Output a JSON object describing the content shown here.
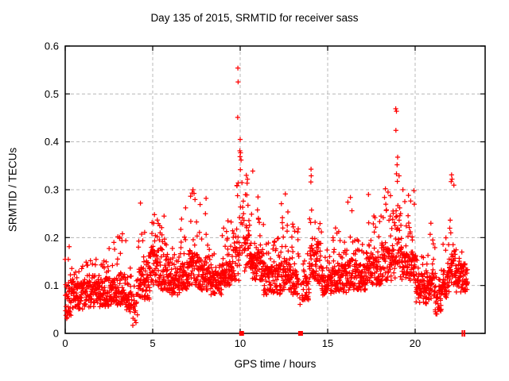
{
  "page": {
    "background": "#ffffff"
  },
  "chart_data": {
    "type": "scatter",
    "title": "Day 135 of 2015, SRMTID for receiver sass",
    "xlabel": "GPS time / hours",
    "ylabel": "SRMTID / TECUs",
    "xlim": [
      0,
      24
    ],
    "ylim": [
      0,
      0.6
    ],
    "xticks": [
      0,
      5,
      10,
      15,
      20
    ],
    "yticks": [
      0,
      0.1,
      0.2,
      0.3,
      0.4,
      0.5,
      0.6
    ],
    "grid": true,
    "grid_style": "dashed",
    "grid_color": "#b8b8b8",
    "border_color": "#000000",
    "text_color": "#000000",
    "marker": "plus",
    "marker_color": "#ff0000",
    "series": [
      {
        "name": "SRMTID",
        "x_extent_hours": [
          0.0,
          23.0
        ],
        "model": {
          "epoch_step_hours": 0.0095,
          "band_segments": [
            [
              0.0,
              0.35,
              0.03,
              0.12,
              0.19,
              1
            ],
            [
              0.35,
              1.05,
              0.05,
              0.105,
              0.145,
              1
            ],
            [
              1.05,
              2.3,
              0.055,
              0.105,
              0.155,
              1
            ],
            [
              2.3,
              3.0,
              0.055,
              0.115,
              0.185,
              1
            ],
            [
              3.0,
              3.5,
              0.06,
              0.125,
              0.205,
              1
            ],
            [
              3.5,
              3.8,
              0.045,
              0.095,
              0.14,
              0.9
            ],
            [
              3.8,
              4.15,
              0.015,
              0.07,
              0.12,
              0.55
            ],
            [
              4.15,
              4.55,
              0.07,
              0.15,
              0.26,
              0.95
            ],
            [
              4.55,
              4.85,
              0.07,
              0.125,
              0.18,
              1
            ],
            [
              4.85,
              5.45,
              0.1,
              0.175,
              0.245,
              1
            ],
            [
              5.45,
              5.95,
              0.09,
              0.155,
              0.24,
              1
            ],
            [
              5.95,
              6.55,
              0.08,
              0.13,
              0.19,
              1
            ],
            [
              6.55,
              7.05,
              0.09,
              0.15,
              0.26,
              1
            ],
            [
              7.05,
              7.6,
              0.1,
              0.165,
              0.295,
              1
            ],
            [
              7.6,
              8.3,
              0.09,
              0.15,
              0.27,
              1
            ],
            [
              8.3,
              8.95,
              0.08,
              0.125,
              0.17,
              1
            ],
            [
              8.95,
              9.55,
              0.1,
              0.155,
              0.235,
              1
            ],
            [
              9.55,
              9.95,
              0.11,
              0.2,
              0.315,
              0.95
            ],
            [
              9.95,
              10.25,
              0.15,
              0.26,
              0.42,
              0.5
            ],
            [
              10.25,
              10.65,
              0.13,
              0.22,
              0.33,
              1
            ],
            [
              10.65,
              11.35,
              0.11,
              0.175,
              0.275,
              1
            ],
            [
              11.35,
              12.3,
              0.08,
              0.14,
              0.205,
              1
            ],
            [
              12.3,
              12.75,
              0.09,
              0.15,
              0.28,
              1
            ],
            [
              12.75,
              13.35,
              0.08,
              0.135,
              0.225,
              1
            ],
            [
              13.35,
              13.6,
              0.06,
              0.1,
              0.14,
              0.2
            ],
            [
              13.6,
              13.95,
              0.07,
              0.115,
              0.19,
              0.85
            ],
            [
              13.95,
              14.35,
              0.1,
              0.175,
              0.33,
              1
            ],
            [
              14.35,
              14.65,
              0.1,
              0.185,
              0.265,
              1
            ],
            [
              14.65,
              15.25,
              0.08,
              0.13,
              0.18,
              1
            ],
            [
              15.25,
              16.1,
              0.085,
              0.14,
              0.215,
              1
            ],
            [
              16.1,
              16.45,
              0.09,
              0.155,
              0.28,
              1
            ],
            [
              16.45,
              17.25,
              0.09,
              0.14,
              0.2,
              1
            ],
            [
              17.25,
              18.05,
              0.1,
              0.16,
              0.25,
              1
            ],
            [
              18.05,
              18.85,
              0.11,
              0.18,
              0.31,
              1
            ],
            [
              18.85,
              19.15,
              0.13,
              0.24,
              0.365,
              1
            ],
            [
              19.15,
              19.6,
              0.11,
              0.175,
              0.295,
              1
            ],
            [
              19.6,
              20.05,
              0.1,
              0.17,
              0.295,
              1
            ],
            [
              20.05,
              20.65,
              0.06,
              0.11,
              0.17,
              1
            ],
            [
              20.65,
              21.15,
              0.07,
              0.125,
              0.225,
              1
            ],
            [
              21.15,
              21.5,
              0.04,
              0.09,
              0.135,
              0.95
            ],
            [
              21.5,
              21.95,
              0.075,
              0.13,
              0.205,
              1
            ],
            [
              21.95,
              22.35,
              0.1,
              0.165,
              0.31,
              1
            ],
            [
              22.35,
              23.0,
              0.085,
              0.135,
              0.175,
              1
            ]
          ],
          "peak_points": [
            [
              9.87,
              0.554
            ],
            [
              9.88,
              0.525
            ],
            [
              9.86,
              0.451
            ],
            [
              10.0,
              0.405
            ],
            [
              10.02,
              0.377
            ],
            [
              9.99,
              0.369
            ],
            [
              10.05,
              0.362
            ],
            [
              10.01,
              0.342
            ],
            [
              10.35,
              0.33
            ],
            [
              10.42,
              0.322
            ],
            [
              10.72,
              0.339
            ],
            [
              18.89,
              0.469
            ],
            [
              18.93,
              0.464
            ],
            [
              18.9,
              0.424
            ],
            [
              19.0,
              0.368
            ],
            [
              18.97,
              0.352
            ],
            [
              14.05,
              0.343
            ],
            [
              14.06,
              0.329
            ],
            [
              14.04,
              0.316
            ],
            [
              22.08,
              0.331
            ],
            [
              22.11,
              0.322
            ],
            [
              22.06,
              0.317
            ],
            [
              12.58,
              0.291
            ],
            [
              16.3,
              0.284
            ],
            [
              17.33,
              0.29
            ],
            [
              7.3,
              0.3
            ],
            [
              7.25,
              0.293
            ],
            [
              8.05,
              0.282
            ],
            [
              4.3,
              0.272
            ],
            [
              6.88,
              0.262
            ],
            [
              11.02,
              0.285
            ],
            [
              18.3,
              0.302
            ],
            [
              18.45,
              0.295
            ],
            [
              19.3,
              0.3
            ],
            [
              19.93,
              0.298
            ],
            [
              2.78,
              0.19
            ],
            [
              3.27,
              0.208
            ],
            [
              5.1,
              0.248
            ],
            [
              5.65,
              0.245
            ],
            [
              9.3,
              0.235
            ],
            [
              13.0,
              0.228
            ],
            [
              15.45,
              0.22
            ],
            [
              20.9,
              0.23
            ]
          ]
        }
      }
    ],
    "gap_markers": {
      "squares_at_hours": [
        10.08,
        13.45
      ],
      "dashes_at_hours": [
        22.7,
        22.82
      ]
    }
  }
}
